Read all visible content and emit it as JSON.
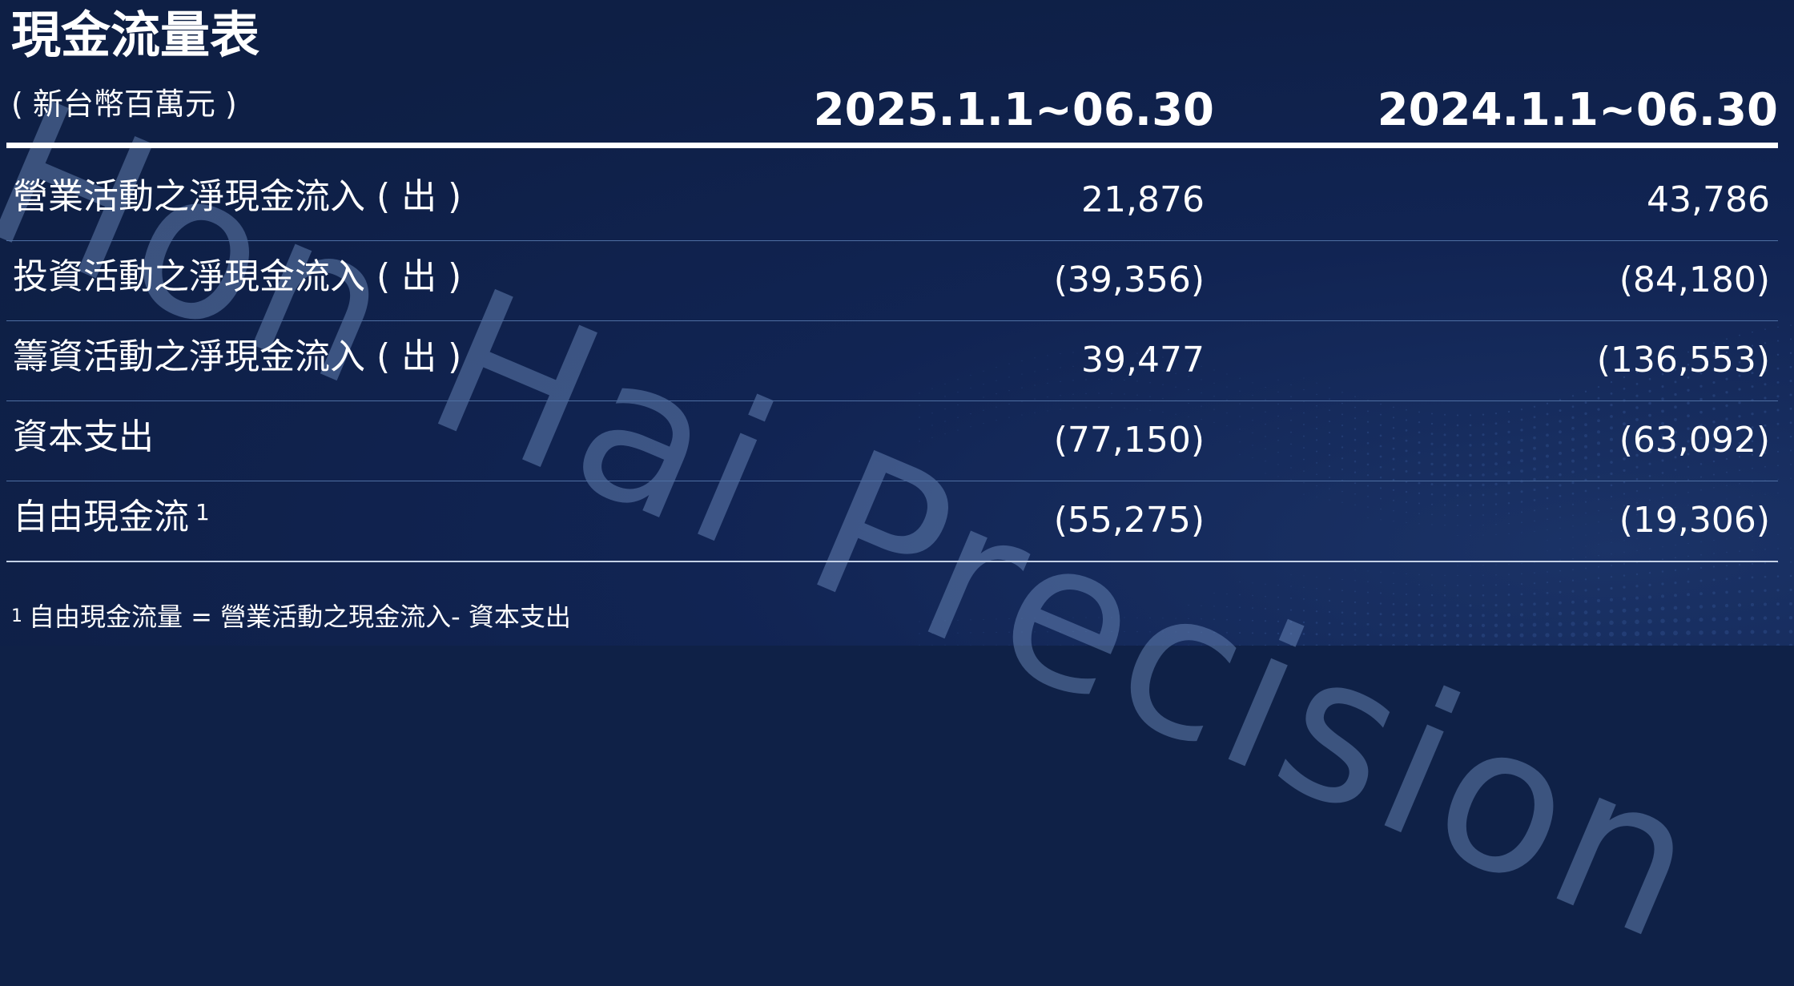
{
  "title": "現金流量表",
  "unit_label": "( 新台幣百萬元 )",
  "columns": [
    "2025.1.1~06.30",
    "2024.1.1~06.30"
  ],
  "rows": [
    {
      "label": "營業活動之淨現金流入 ( 出 )",
      "note": "",
      "v2025": "21,876",
      "v2024": "43,786"
    },
    {
      "label": "投資活動之淨現金流入 ( 出 )",
      "note": "",
      "v2025": "(39,356)",
      "v2024": "(84,180)"
    },
    {
      "label": "籌資活動之淨現金流入 ( 出 )",
      "note": "",
      "v2025": "39,477",
      "v2024": "(136,553)"
    },
    {
      "label": "資本支出",
      "note": "",
      "v2025": "(77,150)",
      "v2024": "(63,092)"
    },
    {
      "label": "自由現金流",
      "note": "1",
      "v2025": "(55,275)",
      "v2024": "(19,306)"
    }
  ],
  "footnote": {
    "mark": "1",
    "text": "自由現金流量 = 營業活動之現金流入- 資本支出"
  },
  "watermark": "Hon Hai Precision",
  "colors": {
    "background": "#0f2147",
    "text": "#ffffff",
    "watermark": "#7a9acc",
    "row_divider": "#4e6ea2"
  }
}
